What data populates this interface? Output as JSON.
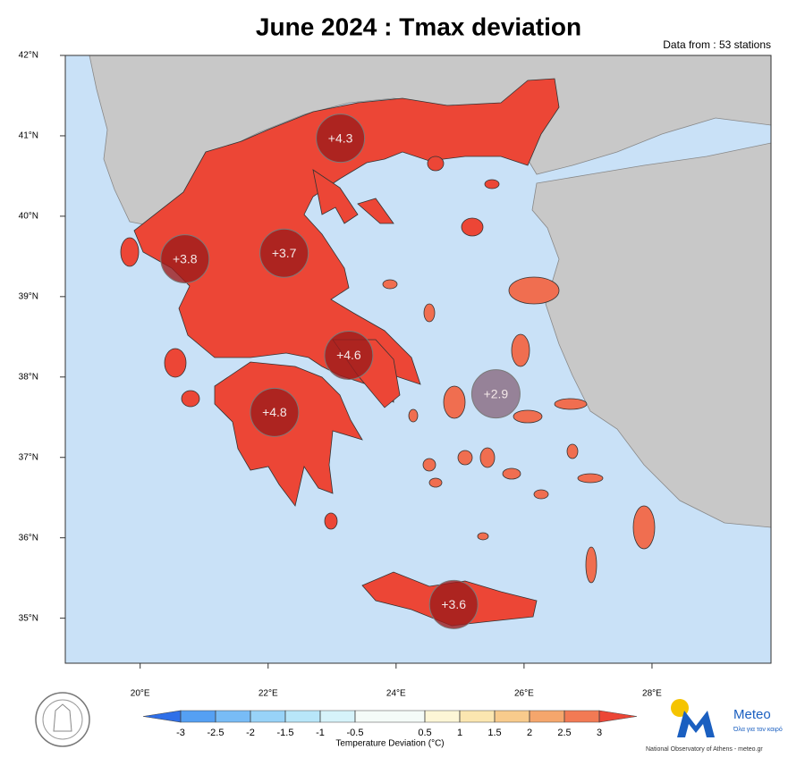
{
  "title": "June 2024 : Tmax deviation",
  "subtitle": "Data from : 53 stations",
  "map": {
    "xlim": [
      18.83,
      29.86
    ],
    "ylim": [
      34.44,
      42
    ],
    "xticks": [
      {
        "value": 20,
        "label": "20°E"
      },
      {
        "value": 22,
        "label": "22°E"
      },
      {
        "value": 24,
        "label": "24°E"
      },
      {
        "value": 26,
        "label": "26°E"
      },
      {
        "value": 28,
        "label": "28°E"
      }
    ],
    "yticks": [
      {
        "value": 35,
        "label": "35°N"
      },
      {
        "value": 36,
        "label": "36°N"
      },
      {
        "value": 37,
        "label": "37°N"
      },
      {
        "value": 38,
        "label": "38°N"
      },
      {
        "value": 39,
        "label": "39°N"
      },
      {
        "value": 40,
        "label": "40°N"
      },
      {
        "value": 41,
        "label": "41°N"
      },
      {
        "value": 42,
        "label": "42°N"
      }
    ],
    "stations": [
      {
        "lon": 23.13,
        "lat": 40.97,
        "value": 4.3,
        "label": "+4.3",
        "color": "#9e1c1c"
      },
      {
        "lon": 20.7,
        "lat": 39.47,
        "value": 3.8,
        "label": "+3.8",
        "color": "#9e1c1c"
      },
      {
        "lon": 22.25,
        "lat": 39.54,
        "value": 3.7,
        "label": "+3.7",
        "color": "#9e1c1c"
      },
      {
        "lon": 23.26,
        "lat": 38.27,
        "value": 4.6,
        "label": "+4.6",
        "color": "#9e1c1c"
      },
      {
        "lon": 22.1,
        "lat": 37.56,
        "value": 4.8,
        "label": "+4.8",
        "color": "#9e1c1c"
      },
      {
        "lon": 25.56,
        "lat": 37.79,
        "value": 2.9,
        "label": "+2.9",
        "color": "#8a6a80"
      },
      {
        "lon": 24.9,
        "lat": 35.17,
        "value": 3.6,
        "label": "+3.6",
        "color": "#9e1c1c"
      }
    ]
  },
  "colorbar": {
    "label": "Temperature Deviation (°C)",
    "ticks": [
      -3,
      -2.5,
      -2,
      -1.5,
      -1,
      -0.5,
      0.5,
      1,
      1.5,
      2,
      2.5,
      3
    ],
    "colors": [
      "#2f6fe8",
      "#55a0f3",
      "#78bcf6",
      "#98d3f8",
      "#b8e6f9",
      "#d6f3fa",
      "#f4fbf8",
      "#fdf6d6",
      "#fbe6b0",
      "#f8cb8c",
      "#f5a66c",
      "#f27a54",
      "#ec4636"
    ]
  },
  "footer": {
    "brand": "Meteo",
    "slogan": "Όλα για τον καιρό",
    "credit": "National Observatory of Athens - meteo.gr"
  }
}
